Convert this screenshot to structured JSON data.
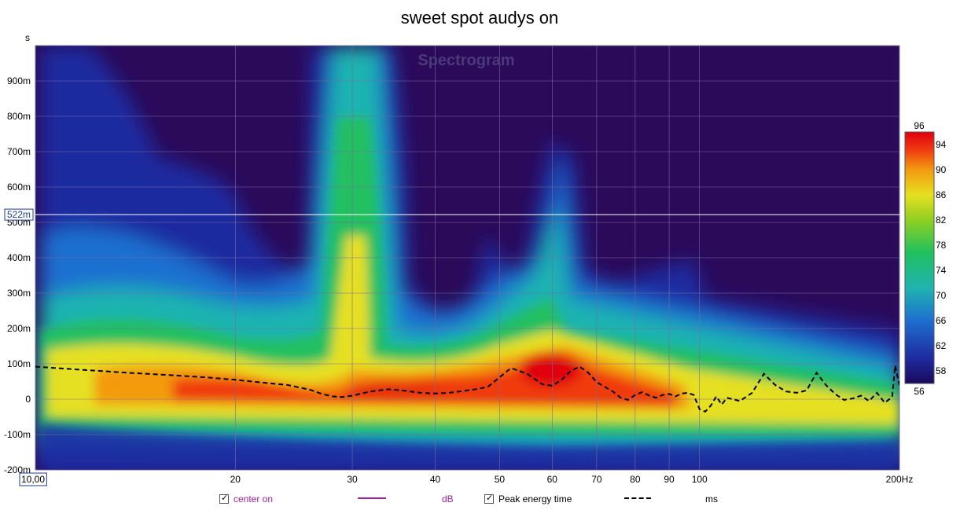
{
  "colors": {
    "background": "#2b0a5a",
    "cursor_line": "#ffffff",
    "center_line": "#a020a0",
    "peak_line": "#000000",
    "colormap": [
      "#1a0a5a",
      "#1f2aa0",
      "#1e6fd0",
      "#1fb4b0",
      "#20c060",
      "#8fd020",
      "#e6e020",
      "#f39a10",
      "#f03a10",
      "#e00010"
    ]
  },
  "chart_data": {
    "type": "heatmap",
    "title": "sweet spot audys on",
    "watermark": "Spectrogram",
    "x_axis": {
      "scale": "log",
      "xlim": [
        10,
        200
      ],
      "ticks": [
        {
          "v": 10,
          "label": "10,00"
        },
        {
          "v": 20,
          "label": "20"
        },
        {
          "v": 30,
          "label": "30"
        },
        {
          "v": 40,
          "label": "40"
        },
        {
          "v": 50,
          "label": "50"
        },
        {
          "v": 60,
          "label": "60"
        },
        {
          "v": 70,
          "label": "70"
        },
        {
          "v": 80,
          "label": "80"
        },
        {
          "v": 90,
          "label": "90"
        },
        {
          "v": 100,
          "label": "100"
        },
        {
          "v": 200,
          "label": "200Hz"
        }
      ],
      "grid": true
    },
    "y_axis": {
      "unit": "s",
      "ylim": [
        -0.2,
        1.0
      ],
      "ticks": [
        {
          "v": 0.9,
          "label": "900m"
        },
        {
          "v": 0.8,
          "label": "800m"
        },
        {
          "v": 0.7,
          "label": "700m"
        },
        {
          "v": 0.6,
          "label": "600m"
        },
        {
          "v": 0.5,
          "label": "500m"
        },
        {
          "v": 0.4,
          "label": "400m"
        },
        {
          "v": 0.3,
          "label": "300m"
        },
        {
          "v": 0.2,
          "label": "200m"
        },
        {
          "v": 0.1,
          "label": "100m"
        },
        {
          "v": 0.0,
          "label": "0"
        },
        {
          "v": -0.1,
          "label": "-100m"
        },
        {
          "v": -0.2,
          "label": "-200m"
        }
      ],
      "grid": true
    },
    "cursor": {
      "y": 0.522,
      "label": "522m"
    },
    "colorbar": {
      "min": 56,
      "max": 96,
      "ticks": [
        96,
        94,
        90,
        86,
        82,
        78,
        74,
        70,
        66,
        62,
        58,
        56
      ]
    },
    "series": [
      {
        "name": "Peak energy time",
        "unit": "ms",
        "style": "dashed",
        "x": [
          10,
          12,
          14,
          16,
          18,
          20,
          22,
          24,
          26,
          27,
          28,
          29,
          30,
          32,
          34,
          36,
          38,
          40,
          42,
          44,
          46,
          48,
          50,
          52,
          55,
          58,
          60,
          62,
          64,
          66,
          68,
          70,
          72,
          74,
          76,
          78,
          80,
          82,
          84,
          86,
          88,
          90,
          92,
          94,
          96,
          98,
          100,
          102,
          104,
          106,
          108,
          110,
          115,
          120,
          125,
          130,
          135,
          140,
          145,
          150,
          155,
          160,
          165,
          170,
          175,
          180,
          185,
          190,
          195,
          197,
          200
        ],
        "y": [
          0.092,
          0.082,
          0.074,
          0.068,
          0.062,
          0.055,
          0.047,
          0.04,
          0.026,
          0.015,
          0.008,
          0.006,
          0.01,
          0.022,
          0.028,
          0.024,
          0.018,
          0.016,
          0.018,
          0.023,
          0.028,
          0.035,
          0.062,
          0.088,
          0.072,
          0.042,
          0.038,
          0.055,
          0.08,
          0.092,
          0.075,
          0.048,
          0.035,
          0.022,
          0.005,
          -0.002,
          0.012,
          0.02,
          0.01,
          0.004,
          0.012,
          0.015,
          0.008,
          0.016,
          0.018,
          0.012,
          -0.028,
          -0.035,
          -0.018,
          0.008,
          -0.015,
          0.004,
          -0.005,
          0.018,
          0.072,
          0.04,
          0.022,
          0.018,
          0.025,
          0.075,
          0.04,
          0.015,
          -0.002,
          0.002,
          0.01,
          -0.005,
          0.018,
          -0.01,
          0.006,
          0.095,
          0.04
        ]
      }
    ]
  },
  "legend": {
    "center": {
      "label": "center on",
      "unit": "dB"
    },
    "peak": {
      "label": "Peak energy time",
      "unit": "ms"
    }
  }
}
